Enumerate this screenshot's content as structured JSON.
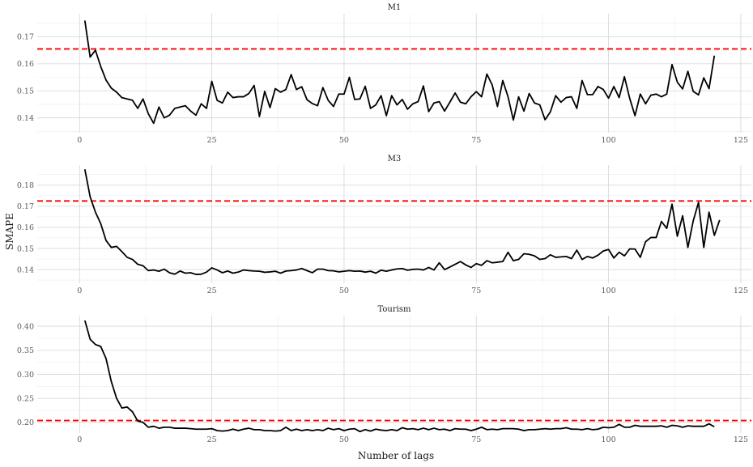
{
  "axes": {
    "xlabel": "Number of lags",
    "ylabel": "SMAPE"
  },
  "colors": {
    "series": "#000000",
    "reference": "#ff0000",
    "grid": "#d9d9d9",
    "background": "#ffffff"
  },
  "chart_data": [
    {
      "type": "line",
      "title": "M1",
      "xlabel": "Number of lags",
      "ylabel": "SMAPE",
      "xlim": [
        -8,
        127
      ],
      "ylim": [
        0.1345,
        0.1785
      ],
      "xticks": [
        0,
        25,
        50,
        75,
        100,
        125
      ],
      "yticks": [
        0.14,
        0.15,
        0.16,
        0.17
      ],
      "ytick_labels": [
        "0.14",
        "0.15",
        "0.16",
        "0.17"
      ],
      "grid": true,
      "reference_line": 0.1655,
      "x_start": 1,
      "y": [
        0.176,
        0.1625,
        0.165,
        0.159,
        0.154,
        0.151,
        0.1495,
        0.1475,
        0.147,
        0.1465,
        0.1435,
        0.147,
        0.1415,
        0.138,
        0.144,
        0.14,
        0.141,
        0.1435,
        0.144,
        0.1445,
        0.1425,
        0.141,
        0.1452,
        0.1435,
        0.1535,
        0.1465,
        0.1455,
        0.1495,
        0.1475,
        0.1478,
        0.1478,
        0.149,
        0.152,
        0.1405,
        0.1498,
        0.1438,
        0.1508,
        0.1495,
        0.1505,
        0.156,
        0.1505,
        0.1515,
        0.1467,
        0.1453,
        0.1445,
        0.1512,
        0.1465,
        0.1442,
        0.1488,
        0.1488,
        0.155,
        0.1468,
        0.147,
        0.1517,
        0.1435,
        0.1448,
        0.1482,
        0.1408,
        0.1482,
        0.1448,
        0.1468,
        0.1432,
        0.1452,
        0.146,
        0.1518,
        0.1423,
        0.1455,
        0.146,
        0.1425,
        0.1458,
        0.1492,
        0.1458,
        0.1452,
        0.1478,
        0.1497,
        0.1478,
        0.1562,
        0.1522,
        0.1442,
        0.1538,
        0.1478,
        0.1392,
        0.1478,
        0.1425,
        0.149,
        0.1455,
        0.1448,
        0.1393,
        0.1422,
        0.1482,
        0.1458,
        0.1475,
        0.1478,
        0.1435,
        0.1538,
        0.1486,
        0.1486,
        0.1516,
        0.1505,
        0.1473,
        0.1516,
        0.1475,
        0.1552,
        0.1472,
        0.1408,
        0.1488,
        0.1452,
        0.1484,
        0.1488,
        0.1478,
        0.1488,
        0.1597,
        0.1532,
        0.1507,
        0.1572,
        0.1498,
        0.1485,
        0.1548,
        0.1508,
        0.163
      ]
    },
    {
      "type": "line",
      "title": "M3",
      "xlabel": "Number of lags",
      "ylabel": "SMAPE",
      "xlim": [
        -8,
        127
      ],
      "ylim": [
        0.1335,
        0.1895
      ],
      "xticks": [
        0,
        25,
        50,
        75,
        100,
        125
      ],
      "yticks": [
        0.14,
        0.15,
        0.16,
        0.17,
        0.18
      ],
      "ytick_labels": [
        "0.14",
        "0.15",
        "0.16",
        "0.17",
        "0.18"
      ],
      "grid": true,
      "reference_line": 0.1725,
      "x_start": 1,
      "y": [
        0.1875,
        0.1745,
        0.1672,
        0.1618,
        0.1538,
        0.1505,
        0.151,
        0.1485,
        0.1458,
        0.1448,
        0.1425,
        0.1418,
        0.1395,
        0.1398,
        0.1392,
        0.1402,
        0.1385,
        0.1378,
        0.1393,
        0.1383,
        0.1385,
        0.1377,
        0.1378,
        0.1388,
        0.1408,
        0.1398,
        0.1385,
        0.1393,
        0.1383,
        0.1388,
        0.1398,
        0.1395,
        0.1393,
        0.1392,
        0.1387,
        0.1389,
        0.1392,
        0.1383,
        0.1393,
        0.1395,
        0.1398,
        0.1405,
        0.1395,
        0.1385,
        0.1402,
        0.1402,
        0.1395,
        0.1394,
        0.1389,
        0.1392,
        0.1395,
        0.1392,
        0.1393,
        0.1388,
        0.1392,
        0.1383,
        0.1397,
        0.1392,
        0.1398,
        0.1403,
        0.1405,
        0.1397,
        0.1401,
        0.1402,
        0.1398,
        0.141,
        0.1398,
        0.1432,
        0.14,
        0.1412,
        0.1425,
        0.1438,
        0.1422,
        0.141,
        0.1428,
        0.142,
        0.1442,
        0.1432,
        0.1435,
        0.1438,
        0.1482,
        0.1442,
        0.1448,
        0.1475,
        0.1472,
        0.1465,
        0.1448,
        0.1452,
        0.147,
        0.1458,
        0.146,
        0.1462,
        0.1452,
        0.1492,
        0.1448,
        0.1462,
        0.1455,
        0.1468,
        0.1488,
        0.1495,
        0.1455,
        0.1482,
        0.1465,
        0.1498,
        0.1497,
        0.1458,
        0.1532,
        0.1552,
        0.1552,
        0.1628,
        0.1595,
        0.171,
        0.1558,
        0.1655,
        0.1505,
        0.163,
        0.1718,
        0.1505,
        0.1672,
        0.1562,
        0.1635
      ]
    },
    {
      "type": "line",
      "title": "Tourism",
      "xlabel": "Number of lags",
      "ylabel": "SMAPE",
      "xlim": [
        -8,
        127
      ],
      "ylim": [
        0.178,
        0.422
      ],
      "xticks": [
        0,
        25,
        50,
        75,
        100,
        125
      ],
      "yticks": [
        0.2,
        0.25,
        0.3,
        0.35,
        0.4
      ],
      "ytick_labels": [
        "0.20",
        "0.25",
        "0.30",
        "0.35",
        "0.40"
      ],
      "grid": true,
      "reference_line": 0.204,
      "x_start": 1,
      "y": [
        0.412,
        0.373,
        0.362,
        0.358,
        0.333,
        0.285,
        0.25,
        0.23,
        0.232,
        0.222,
        0.203,
        0.2,
        0.19,
        0.192,
        0.188,
        0.19,
        0.19,
        0.188,
        0.188,
        0.188,
        0.187,
        0.186,
        0.186,
        0.186,
        0.187,
        0.183,
        0.182,
        0.183,
        0.186,
        0.183,
        0.186,
        0.188,
        0.185,
        0.185,
        0.183,
        0.183,
        0.182,
        0.183,
        0.19,
        0.183,
        0.186,
        0.183,
        0.185,
        0.183,
        0.185,
        0.183,
        0.188,
        0.185,
        0.187,
        0.183,
        0.186,
        0.187,
        0.181,
        0.185,
        0.182,
        0.186,
        0.184,
        0.183,
        0.185,
        0.183,
        0.189,
        0.186,
        0.187,
        0.185,
        0.188,
        0.185,
        0.188,
        0.185,
        0.186,
        0.183,
        0.187,
        0.186,
        0.186,
        0.183,
        0.186,
        0.19,
        0.185,
        0.186,
        0.185,
        0.187,
        0.187,
        0.187,
        0.186,
        0.183,
        0.185,
        0.185,
        0.186,
        0.187,
        0.186,
        0.187,
        0.187,
        0.189,
        0.186,
        0.186,
        0.185,
        0.187,
        0.185,
        0.186,
        0.19,
        0.189,
        0.19,
        0.196,
        0.19,
        0.19,
        0.194,
        0.192,
        0.192,
        0.192,
        0.192,
        0.193,
        0.19,
        0.194,
        0.193,
        0.19,
        0.193,
        0.192,
        0.192,
        0.192,
        0.197,
        0.191
      ]
    }
  ]
}
